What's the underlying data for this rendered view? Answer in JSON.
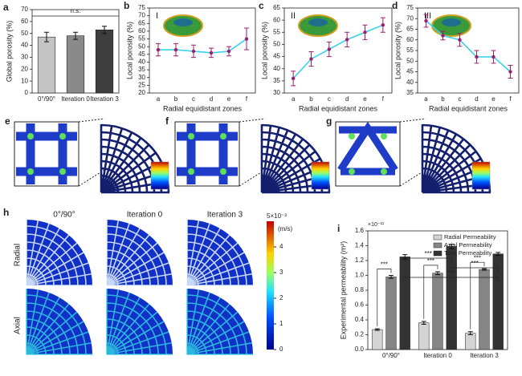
{
  "chart_data": [
    {
      "type": "bar",
      "panel": "a",
      "ylabel": "Global porosity (%)",
      "categories": [
        "0°/90°",
        "Iteration 0",
        "Iteration 3"
      ],
      "values": [
        47,
        48,
        53
      ],
      "errors": [
        4,
        3,
        3
      ],
      "colors": [
        "#c4c4c4",
        "#8a8a8a",
        "#3e3e3e"
      ],
      "ylim": [
        0,
        70
      ],
      "yticks": [
        0,
        10,
        20,
        30,
        40,
        50,
        60,
        70
      ],
      "annotation": "n.s."
    },
    {
      "type": "line",
      "panel": "b",
      "inset": "I",
      "ylabel": "Local porosity (%)",
      "xlabel": "Radial equidistant zones",
      "categories": [
        "a",
        "b",
        "c",
        "d",
        "e",
        "f"
      ],
      "values": [
        48,
        48,
        47,
        46,
        47,
        55
      ],
      "errors": [
        4,
        4,
        4,
        3,
        3,
        7
      ],
      "color": "#3cd2ea",
      "marker_color": "#9c1f6e",
      "ylim": [
        20,
        75
      ],
      "yticks": [
        20,
        25,
        30,
        35,
        40,
        45,
        50,
        55,
        60,
        65,
        70,
        75
      ]
    },
    {
      "type": "line",
      "panel": "c",
      "inset": "II",
      "ylabel": "Local porosity (%)",
      "xlabel": "Radial equidistant zones",
      "categories": [
        "a",
        "b",
        "c",
        "d",
        "e",
        "f"
      ],
      "values": [
        36,
        44,
        48,
        52,
        55,
        58
      ],
      "errors": [
        3,
        3,
        3,
        3,
        3,
        3
      ],
      "color": "#3cd2ea",
      "marker_color": "#9c1f6e",
      "ylim": [
        30,
        65
      ],
      "yticks": [
        30,
        35,
        40,
        45,
        50,
        55,
        60,
        65
      ]
    },
    {
      "type": "line",
      "panel": "d",
      "inset": "III",
      "ylabel": "Local porosity (%)",
      "xlabel": "Radial equidistant zones",
      "categories": [
        "a",
        "b",
        "c",
        "d",
        "e",
        "f"
      ],
      "values": [
        69,
        62,
        60,
        52,
        52,
        45
      ],
      "errors": [
        3,
        2,
        3,
        3,
        3,
        3
      ],
      "color": "#3cd2ea",
      "marker_color": "#9c1f6e",
      "ylim": [
        35,
        75
      ],
      "yticks": [
        35,
        40,
        45,
        50,
        55,
        60,
        65,
        70,
        75
      ]
    },
    {
      "type": "grouped-bar",
      "panel": "i",
      "ylabel": "Experimental permeability (m²)",
      "multiplier": "×10⁻¹¹",
      "categories": [
        "0°/90°",
        "Iteration 0",
        "Iteration 3"
      ],
      "series": [
        {
          "name": "Radial Permeability",
          "color": "#d4d4d4",
          "values": [
            0.27,
            0.36,
            0.22
          ],
          "errors": [
            0.01,
            0.02,
            0.02
          ]
        },
        {
          "name": "Axial Permeability",
          "color": "#858585",
          "values": [
            0.98,
            1.03,
            1.08
          ],
          "errors": [
            0.02,
            0.02,
            0.01
          ]
        },
        {
          "name": "Total Permeability",
          "color": "#333333",
          "values": [
            1.25,
            1.39,
            1.29
          ],
          "errors": [
            0.03,
            0.03,
            0.02
          ]
        }
      ],
      "ylim": [
        0,
        1.6
      ],
      "yticks": [
        {
          "value": 0,
          "label": "0.0"
        },
        0.2,
        0.4,
        0.6,
        0.8,
        {
          "value": 1,
          "label": "1.0"
        },
        1.2,
        1.4,
        1.6
      ],
      "annotations": [
        "***",
        "***",
        "***",
        "***",
        "***",
        "***"
      ]
    }
  ],
  "panels": {
    "e": "e",
    "f": "f",
    "g": "g",
    "h": {
      "label": "h",
      "columns": [
        "0°/90°",
        "Iteration 0",
        "Iteration 3"
      ],
      "rows": [
        "Radial",
        "Axial"
      ],
      "colorbar": {
        "title": "5×10⁻³",
        "unit": "(m/s)",
        "ticks": [
          0,
          1,
          2,
          3,
          4
        ],
        "max": 5
      }
    }
  }
}
